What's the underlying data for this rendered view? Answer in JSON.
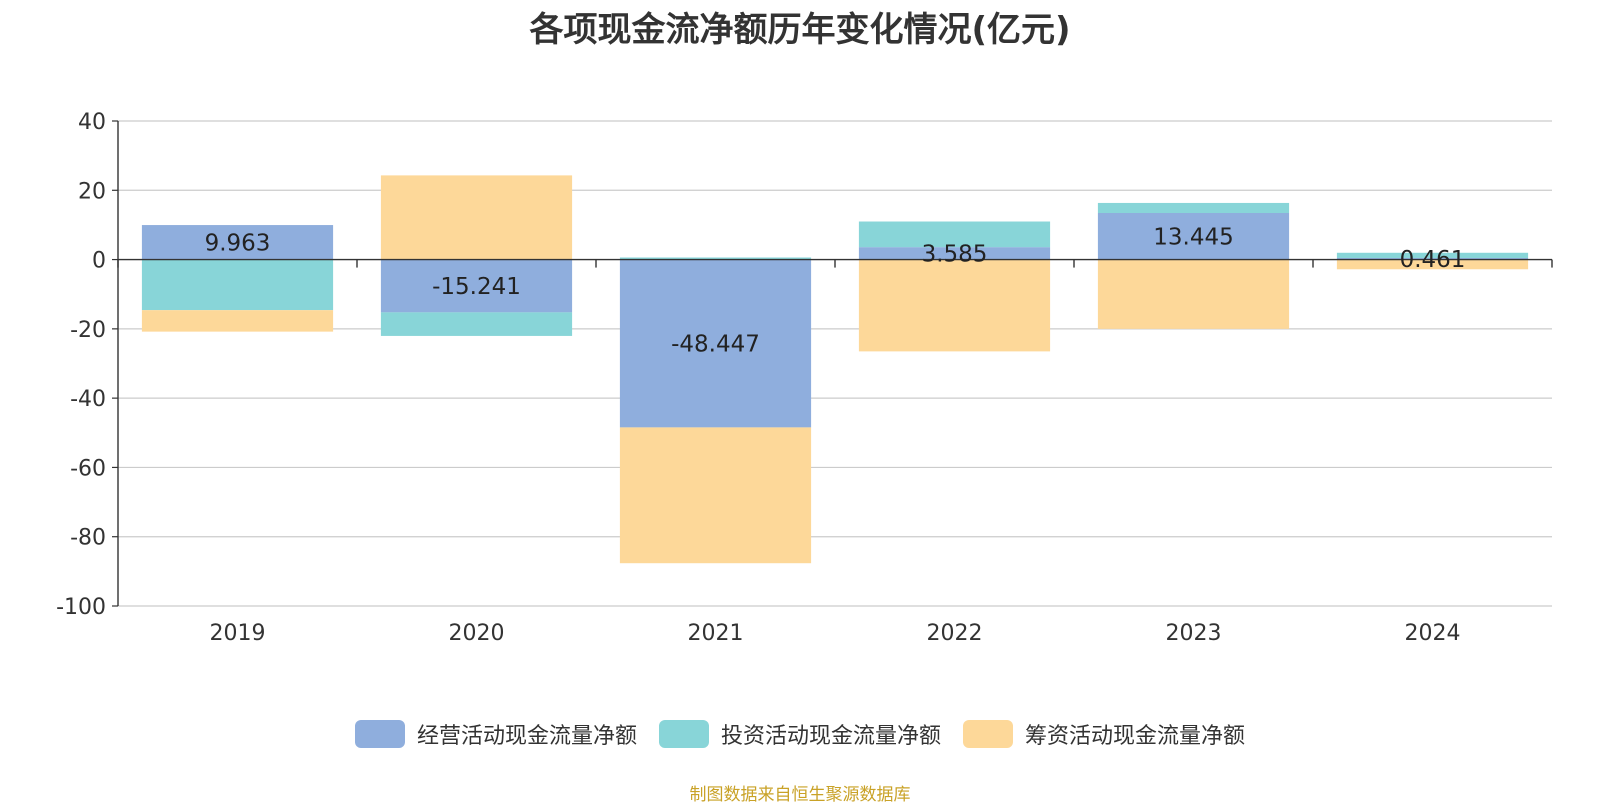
{
  "title": "各项现金流净额历年变化情况(亿元)",
  "source": "制图数据来自恒生聚源数据库",
  "chart_data": {
    "type": "bar",
    "stacked": true,
    "categories": [
      "2019",
      "2020",
      "2021",
      "2022",
      "2023",
      "2024"
    ],
    "series": [
      {
        "name": "经营活动现金流量净额",
        "color": "#8faedd",
        "values": [
          9.963,
          -15.241,
          -48.447,
          3.585,
          13.445,
          0.461
        ],
        "labels": [
          "9.963",
          "-15.241",
          "-48.447",
          "3.585",
          "13.445",
          "0.461"
        ]
      },
      {
        "name": "投资活动现金流量净额",
        "color": "#88d5d8",
        "values": [
          -14.6,
          -6.8,
          0.6,
          7.4,
          2.9,
          1.5
        ]
      },
      {
        "name": "筹资活动现金流量净额",
        "color": "#fdd899",
        "values": [
          -6.2,
          24.3,
          -39.2,
          -26.5,
          -20.0,
          -2.8
        ]
      }
    ],
    "ylim": [
      -100,
      40
    ],
    "yticks": [
      40,
      20,
      0,
      -20,
      -40,
      -60,
      -80,
      -100
    ],
    "grid": true,
    "legend": "bottom"
  }
}
